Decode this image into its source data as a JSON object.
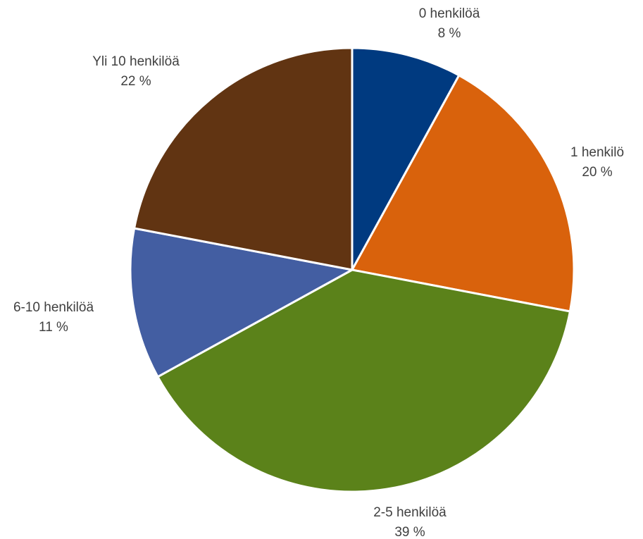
{
  "chart_data": {
    "type": "pie",
    "categories": [
      "0 henkilöä",
      "1 henkilö",
      "2-5 henkilöä",
      "6-10 henkilöä",
      "Yli 10 henkilöä"
    ],
    "values": [
      8,
      20,
      39,
      11,
      22
    ],
    "value_labels": [
      "8 %",
      "20 %",
      "39 %",
      "11 %",
      "22 %"
    ],
    "colors": [
      "#003a80",
      "#d9620c",
      "#5b821a",
      "#435ea2",
      "#613412"
    ]
  }
}
